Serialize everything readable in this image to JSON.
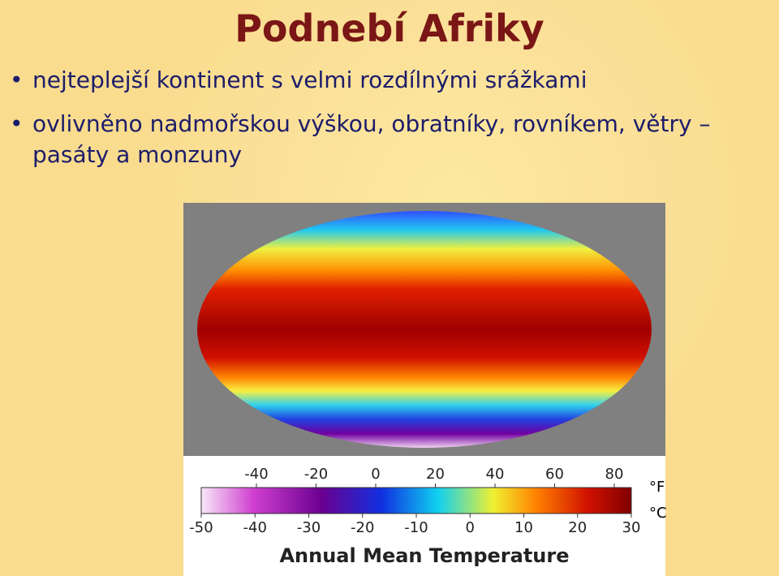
{
  "title": "Podnebí Afriky",
  "bullets": [
    "nejteplejší kontinent s velmi rozdílnými srážkami",
    "ovlivněno nadmořskou výškou, obratníky, rovníkem, větry – pasáty a monzuny"
  ],
  "figure": {
    "caption": "Annual Mean Temperature",
    "fahrenheit_unit": "°F",
    "celsius_unit": "°C",
    "fahrenheit_ticks": [
      -40,
      -20,
      0,
      20,
      40,
      60,
      80
    ],
    "celsius_ticks": [
      -50,
      -40,
      -30,
      -20,
      -10,
      0,
      10,
      20,
      30
    ]
  }
}
